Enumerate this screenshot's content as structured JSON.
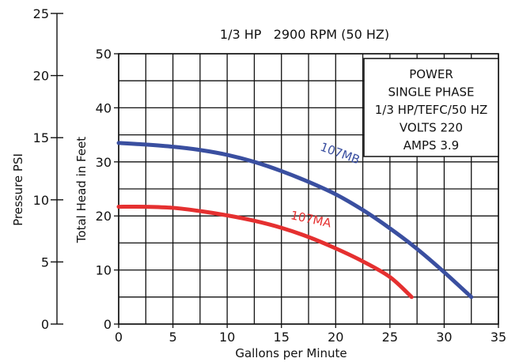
{
  "chart_data": {
    "type": "line",
    "title": "1/3 HP   2900 RPM (50 HZ)",
    "xlabel": "Gallons per Minute",
    "ylabel": "Total Head in Feet",
    "y2label": "Pressure PSI",
    "xlim": [
      0,
      35
    ],
    "ylim": [
      0,
      50
    ],
    "y2lim": [
      0,
      25
    ],
    "x_ticks": [
      "0",
      "5",
      "10",
      "15",
      "20",
      "25",
      "30",
      "35"
    ],
    "y_ticks": [
      "0",
      "10",
      "20",
      "30",
      "40",
      "50"
    ],
    "y2_ticks": [
      "0",
      "5",
      "10",
      "15",
      "20",
      "25"
    ],
    "grid": true,
    "info_box": {
      "lines": [
        "POWER",
        "SINGLE PHASE",
        "1/3 HP/TEFC/50 HZ",
        "VOLTS   220",
        "AMPS   3.9"
      ],
      "placement": "top-right"
    },
    "series": [
      {
        "name": "107MB",
        "color": "#3a4fa0",
        "x": [
          0,
          2.5,
          5,
          7.5,
          10,
          12.5,
          15,
          17.5,
          20,
          22.5,
          25,
          27.5,
          30,
          32.5
        ],
        "y": [
          33.5,
          33.2,
          32.8,
          32.2,
          31.3,
          30.0,
          28.3,
          26.3,
          24.0,
          21.1,
          17.7,
          13.9,
          9.6,
          5.0
        ]
      },
      {
        "name": "107MA",
        "color": "#e53030",
        "x": [
          0,
          2.5,
          5,
          7.5,
          10,
          12.5,
          15,
          17.5,
          20,
          22.5,
          25,
          27
        ],
        "y": [
          21.7,
          21.7,
          21.5,
          20.9,
          20.1,
          19.1,
          17.8,
          16.1,
          14.0,
          11.6,
          8.7,
          5.0
        ]
      }
    ]
  }
}
